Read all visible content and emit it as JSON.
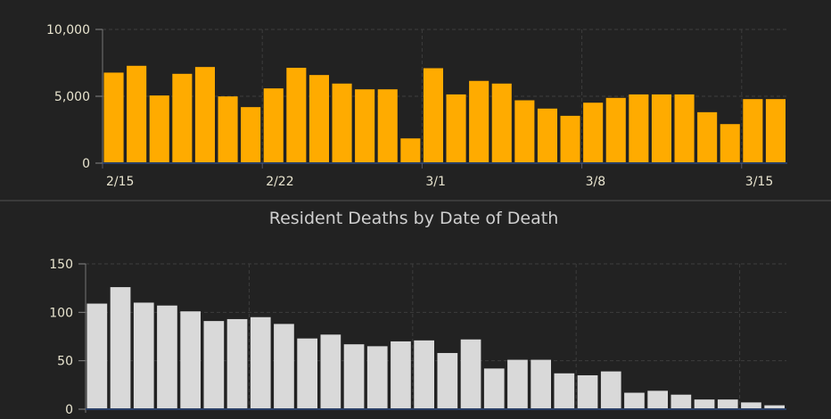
{
  "chart_data": [
    {
      "type": "bar",
      "title": "",
      "xlabel": "",
      "ylabel": "",
      "ylim": [
        0,
        10000
      ],
      "yticks": [
        "0",
        "5,000",
        "10,000"
      ],
      "ytick_values": [
        0,
        5000,
        10000
      ],
      "xtick_labels": [
        "2/15",
        "2/22",
        "3/1",
        "3/8",
        "3/15"
      ],
      "xtick_index": [
        0,
        7,
        14,
        21,
        28
      ],
      "categories": [
        "2/15",
        "2/16",
        "2/17",
        "2/18",
        "2/19",
        "2/20",
        "2/21",
        "2/22",
        "2/23",
        "2/24",
        "2/25",
        "2/26",
        "2/27",
        "2/28",
        "3/1",
        "3/2",
        "3/3",
        "3/4",
        "3/5",
        "3/6",
        "3/7",
        "3/8",
        "3/9",
        "3/10",
        "3/11",
        "3/12",
        "3/13",
        "3/14",
        "3/15",
        "3/16"
      ],
      "values": [
        6770,
        7280,
        5060,
        6680,
        7190,
        4990,
        4190,
        5590,
        7130,
        6590,
        5950,
        5520,
        5520,
        1850,
        7100,
        5140,
        6150,
        5950,
        4700,
        4080,
        3540,
        4520,
        4880,
        5140,
        5140,
        5140,
        3810,
        2920,
        4790,
        4790
      ],
      "color": "#ffab00",
      "grid": true
    },
    {
      "type": "bar",
      "title": "Resident Deaths by Date of Death",
      "xlabel": "",
      "ylabel": "",
      "ylim": [
        0,
        150
      ],
      "yticks": [
        "0",
        "50",
        "100",
        "150"
      ],
      "ytick_values": [
        0,
        50,
        100,
        150
      ],
      "values": [
        109,
        126,
        110,
        107,
        101,
        91,
        93,
        95,
        88,
        73,
        77,
        67,
        65,
        70,
        71,
        58,
        72,
        42,
        51,
        51,
        37,
        35,
        39,
        17,
        19,
        15,
        10,
        10,
        7,
        4
      ],
      "color": "#d9d9d9",
      "grid": true
    }
  ]
}
